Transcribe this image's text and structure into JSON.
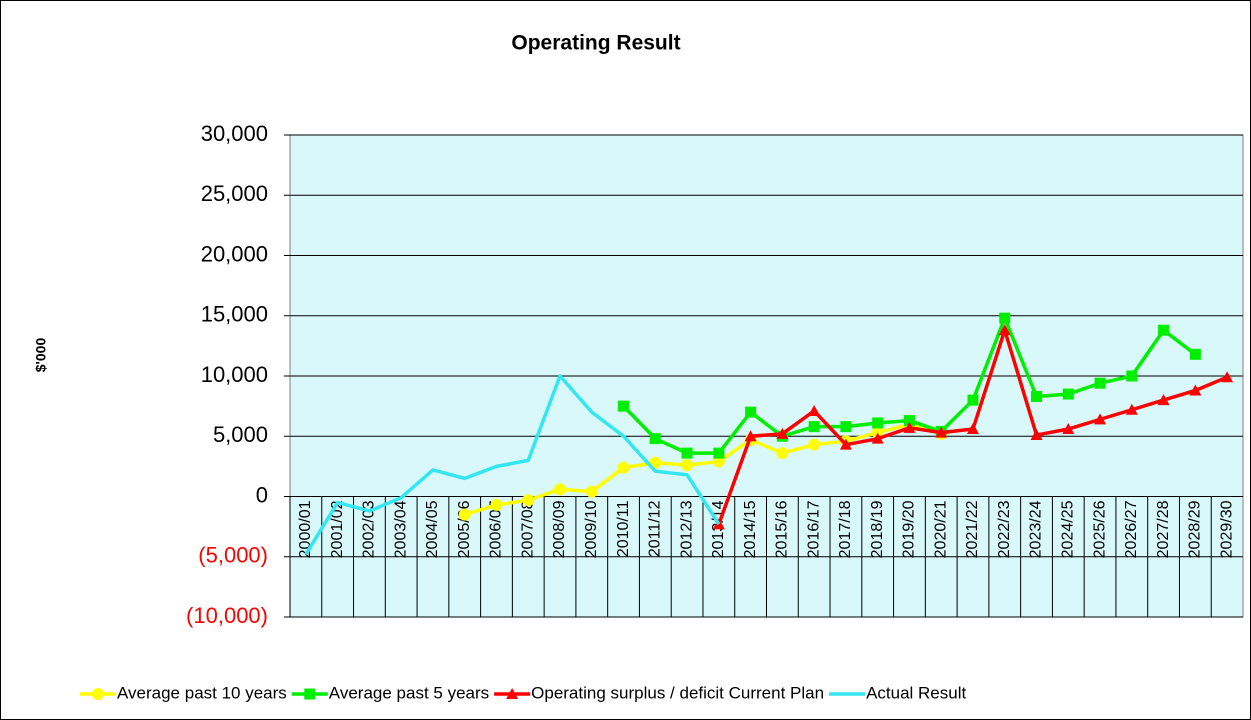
{
  "chart_data": {
    "type": "line",
    "title": "Operating Result",
    "y_label": "$'000",
    "categories": [
      "2000/01",
      "2001/02",
      "2002/03",
      "2003/04",
      "2004/05",
      "2005/06",
      "2006/07",
      "2007/08",
      "2008/09",
      "2009/10",
      "2010/11",
      "2011/12",
      "2012/13",
      "2013/14",
      "2014/15",
      "2015/16",
      "2016/17",
      "2017/18",
      "2018/19",
      "2019/20",
      "2020/21",
      "2021/22",
      "2022/23",
      "2023/24",
      "2024/25",
      "2025/26",
      "2026/27",
      "2027/28",
      "2028/29",
      "2029/30"
    ],
    "series": [
      {
        "name": "Average past 10 years",
        "color": "#ffff00",
        "marker": "circle",
        "values": [
          null,
          null,
          null,
          null,
          null,
          -1500,
          -700,
          -300,
          600,
          400,
          2400,
          2800,
          2600,
          2900,
          4700,
          3600,
          4300,
          4600,
          5300,
          6000,
          5200,
          null,
          null,
          null,
          null,
          null,
          null,
          null,
          null,
          null
        ]
      },
      {
        "name": "Average past 5 years",
        "color": "#00ee00",
        "marker": "square",
        "values": [
          null,
          null,
          null,
          null,
          null,
          null,
          null,
          null,
          null,
          null,
          7500,
          4800,
          3600,
          3600,
          7000,
          5000,
          5800,
          5800,
          6100,
          6300,
          5400,
          8000,
          14800,
          8300,
          8500,
          9400,
          10000,
          13800,
          11800,
          null
        ]
      },
      {
        "name": "Operating surplus / deficit Current Plan",
        "color": "#ff0000",
        "marker": "triangle",
        "values": [
          null,
          null,
          null,
          null,
          null,
          null,
          null,
          null,
          null,
          null,
          null,
          null,
          null,
          -2300,
          5000,
          5200,
          7100,
          4300,
          4800,
          5700,
          5300,
          5600,
          13800,
          5100,
          5600,
          6400,
          7200,
          8000,
          8800,
          9900
        ]
      },
      {
        "name": "Actual Result",
        "color": "#33e6f0",
        "marker": "none",
        "values": [
          -4800,
          -500,
          -1200,
          -100,
          2200,
          1500,
          2500,
          3000,
          10000,
          7000,
          5000,
          2100,
          1800,
          -2300,
          null,
          null,
          null,
          null,
          null,
          null,
          null,
          null,
          null,
          null,
          null,
          null,
          null,
          null,
          null,
          null
        ]
      }
    ],
    "ylim": [
      -10000,
      30000
    ],
    "yticks": [
      {
        "value": -10000,
        "label": "(10,000)"
      },
      {
        "value": -5000,
        "label": "(5,000)"
      },
      0,
      {
        "value": 5000,
        "label": "5,000"
      },
      {
        "value": 10000,
        "label": "10,000"
      },
      {
        "value": 15000,
        "label": "15,000"
      },
      {
        "value": 20000,
        "label": "20,000"
      },
      {
        "value": 25000,
        "label": "25,000"
      },
      {
        "value": 30000,
        "label": "30,000"
      }
    ],
    "negative_tick_color": "#ff0000",
    "plot_background": "#d8f8fa",
    "grid": true,
    "legend": "bottom"
  }
}
